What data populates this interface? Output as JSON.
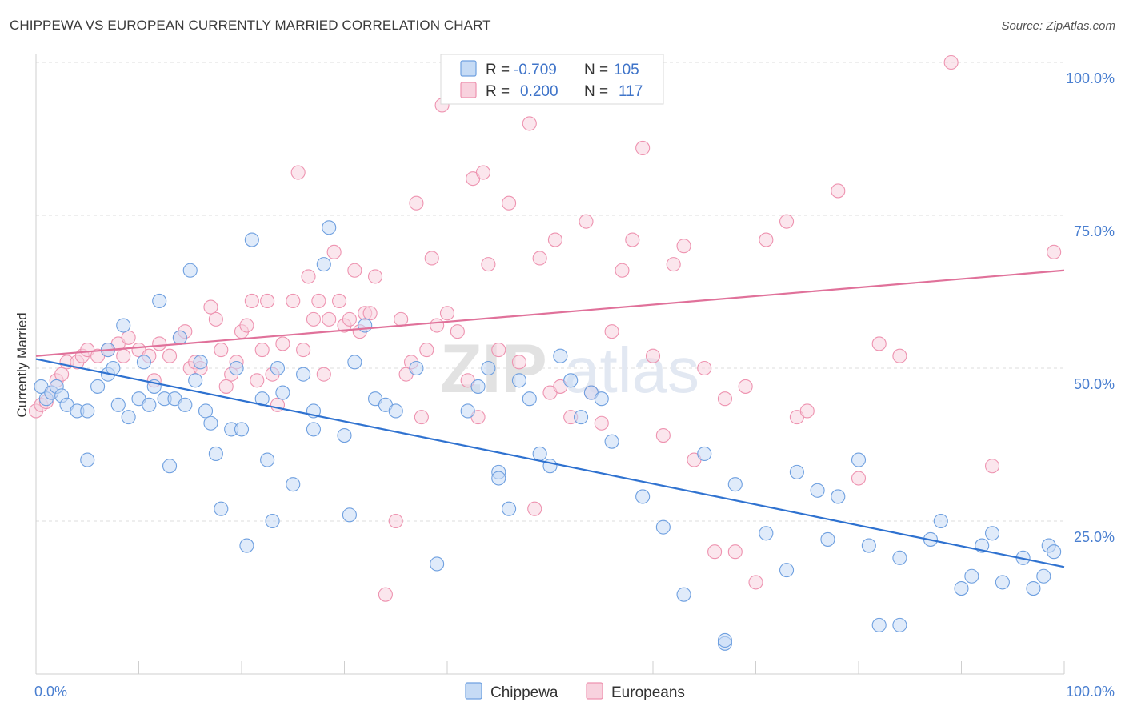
{
  "title": "CHIPPEWA VS EUROPEAN CURRENTLY MARRIED CORRELATION CHART",
  "source": "Source: ZipAtlas.com",
  "watermark": {
    "zip": "ZIP",
    "atlas": "atlas"
  },
  "colors": {
    "chippewa": "#6fa0e0",
    "chippewa_fill": "#c6dbf5",
    "chippewa_line": "#2f72d0",
    "europeans": "#ee93b0",
    "europeans_fill": "#f8d2de",
    "europeans_line": "#e0719a",
    "axis_text": "#4a7fd0"
  },
  "legend": {
    "r_label": "R =",
    "n_label": "N =",
    "rows": [
      {
        "r": "-0.709",
        "n": "105"
      },
      {
        "r": "0.200",
        "n": "117"
      }
    ]
  },
  "chart_data": {
    "type": "scatter",
    "xlabel": "",
    "ylabel": "Currently Married",
    "xlim": [
      0,
      100
    ],
    "ylim": [
      0,
      100
    ],
    "x_tick_labels": [
      "0.0%",
      "100.0%"
    ],
    "y_tick_labels": [
      "25.0%",
      "50.0%",
      "75.0%",
      "100.0%"
    ],
    "y_ticks": [
      25,
      50,
      75,
      100
    ],
    "grid": true,
    "legend_position": "top-center",
    "series": [
      {
        "name": "Chippewa",
        "trend": {
          "x": [
            0,
            100
          ],
          "y": [
            51.5,
            17.5
          ]
        },
        "points": [
          [
            0.5,
            47
          ],
          [
            1,
            45
          ],
          [
            1.5,
            46
          ],
          [
            2,
            47
          ],
          [
            2.5,
            45.5
          ],
          [
            3,
            44
          ],
          [
            4,
            43
          ],
          [
            5,
            35
          ],
          [
            5,
            43
          ],
          [
            6,
            47
          ],
          [
            7,
            53
          ],
          [
            7,
            49
          ],
          [
            7.5,
            50
          ],
          [
            8,
            44
          ],
          [
            8.5,
            57
          ],
          [
            9,
            42
          ],
          [
            10,
            45
          ],
          [
            10.5,
            51
          ],
          [
            11,
            44
          ],
          [
            11.5,
            47
          ],
          [
            12,
            61
          ],
          [
            12.5,
            45
          ],
          [
            13,
            34
          ],
          [
            13.5,
            45
          ],
          [
            14,
            55
          ],
          [
            14.5,
            44
          ],
          [
            15,
            66
          ],
          [
            15.5,
            48
          ],
          [
            16,
            51
          ],
          [
            16.5,
            43
          ],
          [
            17,
            41
          ],
          [
            17.5,
            36
          ],
          [
            18,
            27
          ],
          [
            19,
            40
          ],
          [
            19.5,
            50
          ],
          [
            20,
            40
          ],
          [
            20.5,
            21
          ],
          [
            21,
            71
          ],
          [
            22,
            45
          ],
          [
            22.5,
            35
          ],
          [
            23,
            25
          ],
          [
            23.5,
            50
          ],
          [
            24,
            46
          ],
          [
            25,
            31
          ],
          [
            26,
            49
          ],
          [
            27,
            43
          ],
          [
            27,
            40
          ],
          [
            28,
            67
          ],
          [
            28.5,
            73
          ],
          [
            30,
            39
          ],
          [
            30.5,
            26
          ],
          [
            31,
            51
          ],
          [
            32,
            57
          ],
          [
            33,
            45
          ],
          [
            34,
            44
          ],
          [
            35,
            43
          ],
          [
            37,
            50
          ],
          [
            39,
            18
          ],
          [
            42,
            43
          ],
          [
            43,
            47
          ],
          [
            44,
            50
          ],
          [
            45,
            33
          ],
          [
            45,
            32
          ],
          [
            46,
            27
          ],
          [
            47,
            48
          ],
          [
            48,
            45
          ],
          [
            49,
            36
          ],
          [
            50,
            34
          ],
          [
            51,
            52
          ],
          [
            52,
            48
          ],
          [
            53,
            42
          ],
          [
            54,
            46
          ],
          [
            55,
            45
          ],
          [
            56,
            38
          ],
          [
            59,
            29
          ],
          [
            61,
            24
          ],
          [
            63,
            13
          ],
          [
            65,
            36
          ],
          [
            67,
            5
          ],
          [
            67,
            5.5
          ],
          [
            68,
            31
          ],
          [
            71,
            23
          ],
          [
            73,
            17
          ],
          [
            74,
            33
          ],
          [
            76,
            30
          ],
          [
            77,
            22
          ],
          [
            78,
            29
          ],
          [
            80,
            35
          ],
          [
            81,
            21
          ],
          [
            82,
            8
          ],
          [
            84,
            8
          ],
          [
            84,
            19
          ],
          [
            87,
            22
          ],
          [
            88,
            25
          ],
          [
            90,
            14
          ],
          [
            91,
            16
          ],
          [
            92,
            21
          ],
          [
            93,
            23
          ],
          [
            94,
            15
          ],
          [
            96,
            19
          ],
          [
            97,
            14
          ],
          [
            98,
            16
          ],
          [
            98.5,
            21
          ],
          [
            99,
            20
          ]
        ]
      },
      {
        "name": "Europeans",
        "trend": {
          "x": [
            0,
            100
          ],
          "y": [
            52,
            66
          ]
        },
        "points": [
          [
            0,
            43
          ],
          [
            0.5,
            44
          ],
          [
            1,
            44.5
          ],
          [
            1.5,
            46
          ],
          [
            2,
            48
          ],
          [
            2.5,
            49
          ],
          [
            3,
            51
          ],
          [
            4,
            51
          ],
          [
            4.5,
            52
          ],
          [
            5,
            53
          ],
          [
            6,
            52
          ],
          [
            7,
            53
          ],
          [
            8,
            54
          ],
          [
            8.5,
            52
          ],
          [
            9,
            55
          ],
          [
            10,
            53
          ],
          [
            11,
            52
          ],
          [
            11.5,
            48
          ],
          [
            12,
            54
          ],
          [
            13,
            52
          ],
          [
            14,
            55
          ],
          [
            14.5,
            56
          ],
          [
            15,
            50
          ],
          [
            15.5,
            51
          ],
          [
            16,
            50
          ],
          [
            17,
            60
          ],
          [
            17.5,
            58
          ],
          [
            18,
            53
          ],
          [
            18.5,
            47
          ],
          [
            19,
            49
          ],
          [
            19.5,
            51
          ],
          [
            20,
            56
          ],
          [
            20.5,
            57
          ],
          [
            21,
            61
          ],
          [
            21.5,
            48
          ],
          [
            22,
            53
          ],
          [
            22.5,
            61
          ],
          [
            23,
            49
          ],
          [
            23.5,
            44
          ],
          [
            24,
            54
          ],
          [
            25,
            61
          ],
          [
            25.5,
            82
          ],
          [
            26,
            53
          ],
          [
            26.5,
            65
          ],
          [
            27,
            58
          ],
          [
            27.5,
            61
          ],
          [
            28,
            49
          ],
          [
            28.5,
            58
          ],
          [
            29,
            69
          ],
          [
            29.5,
            61
          ],
          [
            30,
            57
          ],
          [
            30.5,
            58
          ],
          [
            31,
            66
          ],
          [
            31.5,
            56
          ],
          [
            32,
            59
          ],
          [
            32.5,
            59
          ],
          [
            33,
            65
          ],
          [
            34,
            13
          ],
          [
            35,
            25
          ],
          [
            35.5,
            58
          ],
          [
            36,
            49
          ],
          [
            36.5,
            51
          ],
          [
            37,
            77
          ],
          [
            37.5,
            42
          ],
          [
            38,
            53
          ],
          [
            38.5,
            68
          ],
          [
            39,
            57
          ],
          [
            39.5,
            93
          ],
          [
            40,
            59
          ],
          [
            41,
            56
          ],
          [
            42,
            48
          ],
          [
            42.5,
            81
          ],
          [
            43,
            42
          ],
          [
            43.5,
            82
          ],
          [
            44,
            67
          ],
          [
            45,
            53
          ],
          [
            46,
            77
          ],
          [
            47,
            51
          ],
          [
            48,
            90
          ],
          [
            48.5,
            27
          ],
          [
            49,
            68
          ],
          [
            50,
            46
          ],
          [
            50.5,
            71
          ],
          [
            51,
            47
          ],
          [
            52,
            42
          ],
          [
            53,
            95
          ],
          [
            53.5,
            74
          ],
          [
            54,
            46
          ],
          [
            55,
            41
          ],
          [
            56,
            56
          ],
          [
            57,
            66
          ],
          [
            58,
            71
          ],
          [
            59,
            86
          ],
          [
            60,
            52
          ],
          [
            61,
            39
          ],
          [
            62,
            67
          ],
          [
            63,
            70
          ],
          [
            64,
            35
          ],
          [
            65,
            50
          ],
          [
            66,
            20
          ],
          [
            67,
            45
          ],
          [
            68,
            20
          ],
          [
            69,
            47
          ],
          [
            70,
            15
          ],
          [
            71,
            71
          ],
          [
            73,
            74
          ],
          [
            74,
            42
          ],
          [
            75,
            43
          ],
          [
            78,
            79
          ],
          [
            80,
            32
          ],
          [
            82,
            54
          ],
          [
            84,
            52
          ],
          [
            89,
            100
          ],
          [
            93,
            34
          ],
          [
            99,
            69
          ]
        ]
      }
    ]
  },
  "bottom_legend": [
    {
      "label": "Chippewa"
    },
    {
      "label": "Europeans"
    }
  ]
}
